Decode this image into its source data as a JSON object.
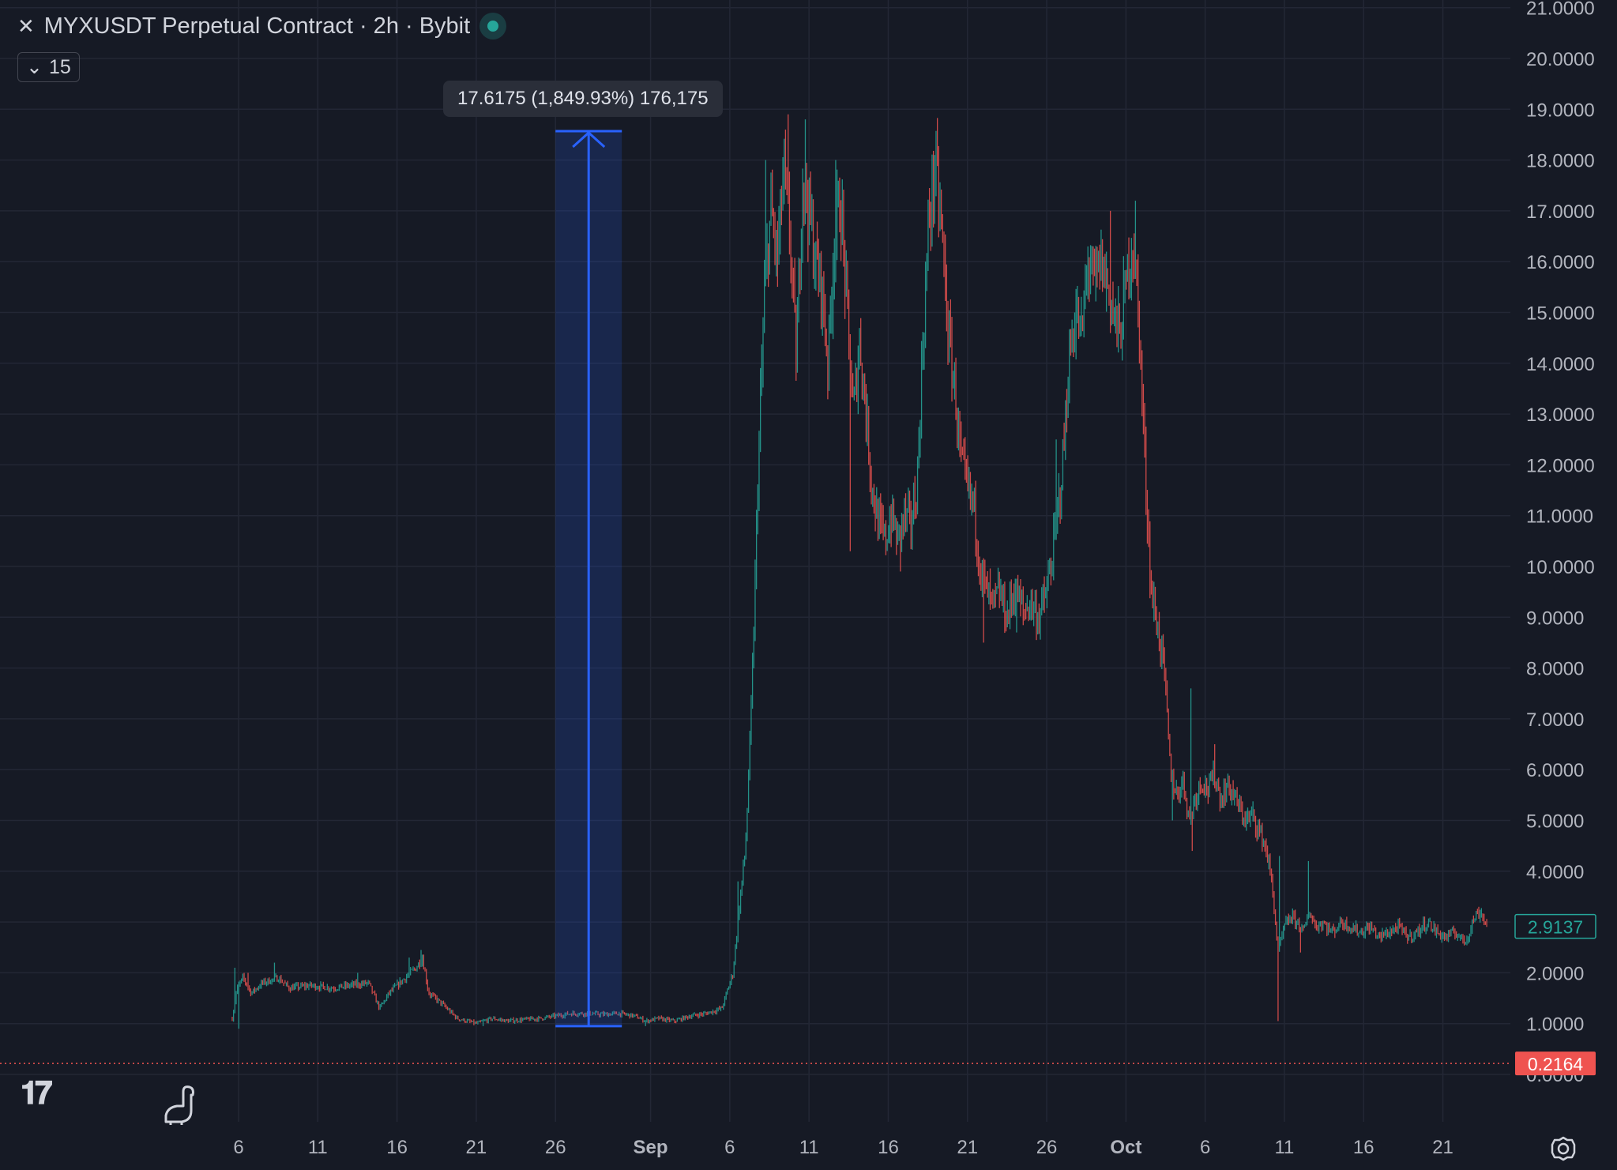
{
  "header": {
    "exchange_icon": "x-icon",
    "symbol_title": "MYXUSDT Perpetual Contract · 2h · Bybit",
    "status_color": "#26a69a",
    "collapse_icon": "chevron-down-icon",
    "indicator_count": "15"
  },
  "measure": {
    "label": "17.6175 (1,849.93%) 176,175",
    "from_price": 0.95,
    "to_price": 18.57,
    "from_date": "Aug 26",
    "to_date": "Aug 31",
    "color": "#2962ff"
  },
  "last_price_label": "2.9137",
  "low_price_label": "0.2164",
  "logo": "TV",
  "chart_data": {
    "type": "candlestick",
    "title": "MYXUSDT Perpetual Contract · 2h · Bybit",
    "ylim": [
      0,
      21
    ],
    "y_ticks": [
      "0.0000",
      "1.0000",
      "2.0000",
      "3.0000",
      "4.0000",
      "5.0000",
      "6.0000",
      "7.0000",
      "8.0000",
      "9.0000",
      "10.0000",
      "11.0000",
      "12.0000",
      "13.0000",
      "14.0000",
      "15.0000",
      "16.0000",
      "17.0000",
      "18.0000",
      "19.0000",
      "20.0000",
      "21.0000"
    ],
    "x_ticks": [
      {
        "label": "6",
        "day": 6,
        "bold": false
      },
      {
        "label": "11",
        "day": 11,
        "bold": false
      },
      {
        "label": "16",
        "day": 16,
        "bold": false
      },
      {
        "label": "21",
        "day": 21,
        "bold": false
      },
      {
        "label": "26",
        "day": 26,
        "bold": false
      },
      {
        "label": "Sep",
        "day": 32,
        "bold": true
      },
      {
        "label": "6",
        "day": 37,
        "bold": false
      },
      {
        "label": "11",
        "day": 42,
        "bold": false
      },
      {
        "label": "16",
        "day": 47,
        "bold": false
      },
      {
        "label": "21",
        "day": 52,
        "bold": false
      },
      {
        "label": "26",
        "day": 57,
        "bold": false
      },
      {
        "label": "Oct",
        "day": 62,
        "bold": true
      },
      {
        "label": "6",
        "day": 67,
        "bold": false
      },
      {
        "label": "11",
        "day": 72,
        "bold": false
      },
      {
        "label": "16",
        "day": 77,
        "bold": false
      },
      {
        "label": "21",
        "day": 82,
        "bold": false
      }
    ],
    "xlim_day": [
      -9,
      85.3
    ],
    "up_color": "#26a69a",
    "down_color": "#ef5350",
    "last_price": 2.9137,
    "low_price": 0.2164,
    "series": [
      {
        "name": "close",
        "points": [
          [
            5.6,
            1.1
          ],
          [
            5.9,
            1.7
          ],
          [
            6.3,
            1.9
          ],
          [
            6.8,
            1.6
          ],
          [
            7.5,
            1.8
          ],
          [
            8.5,
            1.9
          ],
          [
            9.2,
            1.7
          ],
          [
            10.5,
            1.75
          ],
          [
            12,
            1.7
          ],
          [
            13,
            1.75
          ],
          [
            14.2,
            1.8
          ],
          [
            14.9,
            1.3
          ],
          [
            15.5,
            1.6
          ],
          [
            16.5,
            1.9
          ],
          [
            17.2,
            2.1
          ],
          [
            17.6,
            2.3
          ],
          [
            18,
            1.6
          ],
          [
            18.8,
            1.4
          ],
          [
            19.8,
            1.1
          ],
          [
            21,
            1.0
          ],
          [
            22,
            1.1
          ],
          [
            23,
            1.05
          ],
          [
            24,
            1.08
          ],
          [
            25,
            1.1
          ],
          [
            26,
            1.15
          ],
          [
            27,
            1.2
          ],
          [
            28,
            1.2
          ],
          [
            29,
            1.18
          ],
          [
            30,
            1.2
          ],
          [
            31,
            1.15
          ],
          [
            31.7,
            1.05
          ],
          [
            32.5,
            1.1
          ],
          [
            33.5,
            1.05
          ],
          [
            34.5,
            1.15
          ],
          [
            35.5,
            1.2
          ],
          [
            36.5,
            1.3
          ],
          [
            37.2,
            2.0
          ],
          [
            37.6,
            3.3
          ],
          [
            38.0,
            4.5
          ],
          [
            38.4,
            7.5
          ],
          [
            38.8,
            12.0
          ],
          [
            39.2,
            15.5
          ],
          [
            39.6,
            17.0
          ],
          [
            40.0,
            16.0
          ],
          [
            40.4,
            17.8
          ],
          [
            40.8,
            16.5
          ],
          [
            41.2,
            14.0
          ],
          [
            41.6,
            17.8
          ],
          [
            42.0,
            17.0
          ],
          [
            42.4,
            16.0
          ],
          [
            42.8,
            15.5
          ],
          [
            43.2,
            14.0
          ],
          [
            43.6,
            16.5
          ],
          [
            44.0,
            17.2
          ],
          [
            44.4,
            15.0
          ],
          [
            44.8,
            13.0
          ],
          [
            45.2,
            14.5
          ],
          [
            45.6,
            13.0
          ],
          [
            46.0,
            11.5
          ],
          [
            46.4,
            10.8
          ],
          [
            46.8,
            10.5
          ],
          [
            47.2,
            11.0
          ],
          [
            47.6,
            10.5
          ],
          [
            48.0,
            11.0
          ],
          [
            48.4,
            10.8
          ],
          [
            48.8,
            11.5
          ],
          [
            49.2,
            14.5
          ],
          [
            49.6,
            17.0
          ],
          [
            50.0,
            17.8
          ],
          [
            50.4,
            16.5
          ],
          [
            50.8,
            14.5
          ],
          [
            51.2,
            13.5
          ],
          [
            51.6,
            12.0
          ],
          [
            52.0,
            11.5
          ],
          [
            52.4,
            11.2
          ],
          [
            52.8,
            10.0
          ],
          [
            53.2,
            9.5
          ],
          [
            53.6,
            9.2
          ],
          [
            54.0,
            9.5
          ],
          [
            54.5,
            9.0
          ],
          [
            55.0,
            9.6
          ],
          [
            55.5,
            9.1
          ],
          [
            56.0,
            9.3
          ],
          [
            56.5,
            9.0
          ],
          [
            57.0,
            9.5
          ],
          [
            57.5,
            10.5
          ],
          [
            58.0,
            12.0
          ],
          [
            58.4,
            14.0
          ],
          [
            58.8,
            15.0
          ],
          [
            59.2,
            14.5
          ],
          [
            59.6,
            16.0
          ],
          [
            60.0,
            15.5
          ],
          [
            60.4,
            16.0
          ],
          [
            60.8,
            15.6
          ],
          [
            61.2,
            15.0
          ],
          [
            61.6,
            14.5
          ],
          [
            62.0,
            15.5
          ],
          [
            62.4,
            16.5
          ],
          [
            62.8,
            15.0
          ],
          [
            63.2,
            12.0
          ],
          [
            63.6,
            9.5
          ],
          [
            64.0,
            8.8
          ],
          [
            64.4,
            8.0
          ],
          [
            64.8,
            6.0
          ],
          [
            65.2,
            5.5
          ],
          [
            65.6,
            5.8
          ],
          [
            66.0,
            5.0
          ],
          [
            66.4,
            5.5
          ],
          [
            66.8,
            5.8
          ],
          [
            67.2,
            5.6
          ],
          [
            67.6,
            5.9
          ],
          [
            68.0,
            5.4
          ],
          [
            68.4,
            5.7
          ],
          [
            68.8,
            5.5
          ],
          [
            69.2,
            5.2
          ],
          [
            69.6,
            5.0
          ],
          [
            70.0,
            5.1
          ],
          [
            70.4,
            4.8
          ],
          [
            70.8,
            4.5
          ],
          [
            71.2,
            3.8
          ],
          [
            71.6,
            2.4
          ],
          [
            72.0,
            2.9
          ],
          [
            72.4,
            3.1
          ],
          [
            72.8,
            3.0
          ],
          [
            73.2,
            2.8
          ],
          [
            73.6,
            3.2
          ],
          [
            74.0,
            2.9
          ],
          [
            74.4,
            3.0
          ],
          [
            75.0,
            2.8
          ],
          [
            75.6,
            3.0
          ],
          [
            76.2,
            2.9
          ],
          [
            76.8,
            2.8
          ],
          [
            77.4,
            2.9
          ],
          [
            78.0,
            2.7
          ],
          [
            78.6,
            2.8
          ],
          [
            79.2,
            2.9
          ],
          [
            79.8,
            2.7
          ],
          [
            80.4,
            2.8
          ],
          [
            81.0,
            3.0
          ],
          [
            81.6,
            2.8
          ],
          [
            82.2,
            2.7
          ],
          [
            82.8,
            2.8
          ],
          [
            83.4,
            2.6
          ],
          [
            84.0,
            3.1
          ],
          [
            84.4,
            3.2
          ],
          [
            84.8,
            2.91
          ]
        ]
      },
      {
        "name": "high",
        "points": [
          [
            5.8,
            2.1
          ],
          [
            6.6,
            2.0
          ],
          [
            8.3,
            2.2
          ],
          [
            13.5,
            2.0
          ],
          [
            16.8,
            2.3
          ],
          [
            17.5,
            2.45
          ],
          [
            37.5,
            3.8
          ],
          [
            39.3,
            18.0
          ],
          [
            40.7,
            18.9
          ],
          [
            41.8,
            18.8
          ],
          [
            43.7,
            18.0
          ],
          [
            49.9,
            18.1
          ],
          [
            57.6,
            12.5
          ],
          [
            59.6,
            16.3
          ],
          [
            61.0,
            17.0
          ],
          [
            62.6,
            17.2
          ],
          [
            63.3,
            12.0
          ],
          [
            66.1,
            7.6
          ],
          [
            67.6,
            6.5
          ],
          [
            71.7,
            4.3
          ],
          [
            73.5,
            4.2
          ],
          [
            84.3,
            3.3
          ]
        ]
      },
      {
        "name": "low",
        "points": [
          [
            6.0,
            0.9
          ],
          [
            21.4,
            0.95
          ],
          [
            31.7,
            0.95
          ],
          [
            44.6,
            10.3
          ],
          [
            47.8,
            9.9
          ],
          [
            53.0,
            8.5
          ],
          [
            55.1,
            8.7
          ],
          [
            64.9,
            5.0
          ],
          [
            66.2,
            4.4
          ],
          [
            71.6,
            1.05
          ],
          [
            73.0,
            2.4
          ]
        ]
      }
    ]
  }
}
